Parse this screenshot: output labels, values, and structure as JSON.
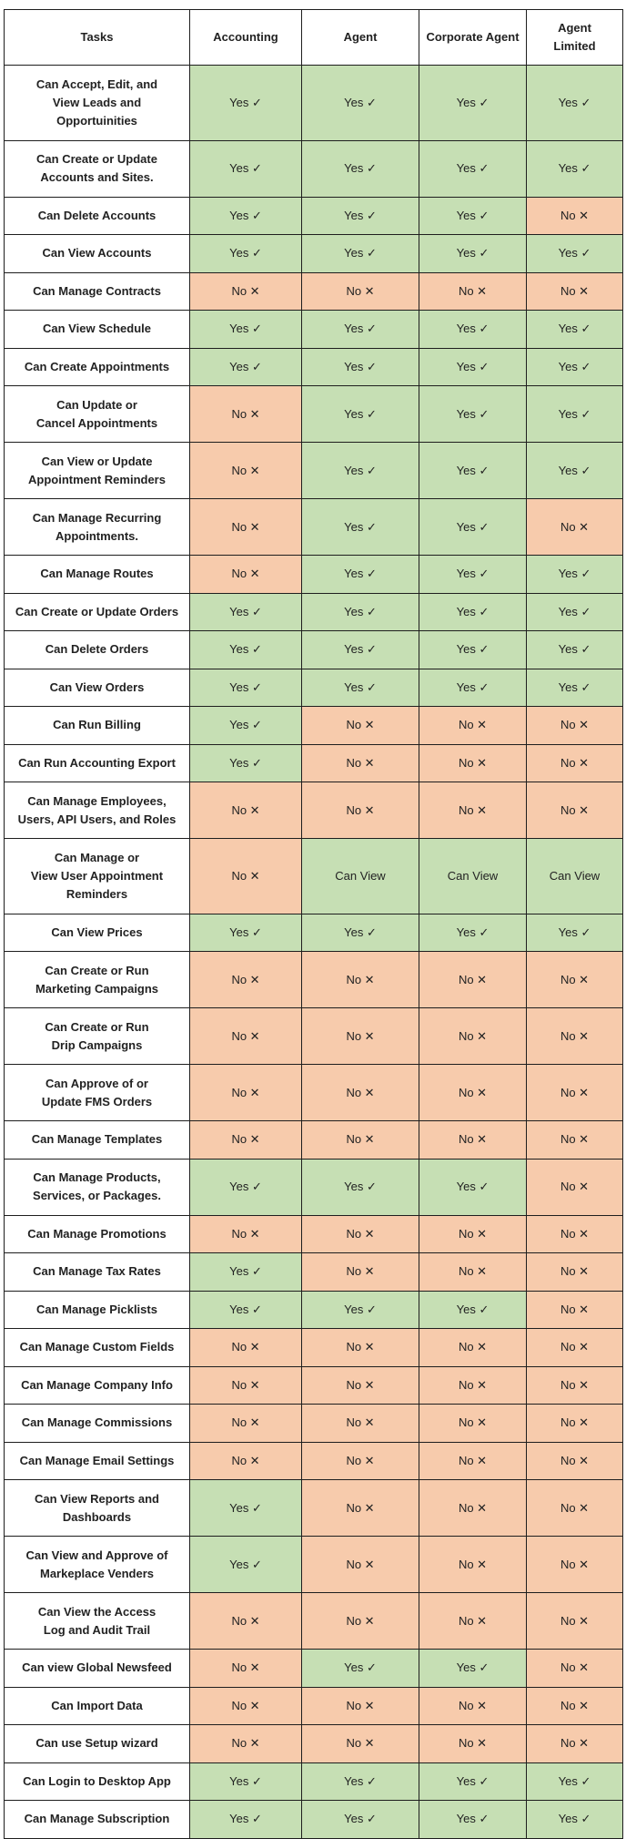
{
  "colors": {
    "yes": "#c6dfb4",
    "no": "#f7cbac"
  },
  "headers": [
    "Tasks",
    "Accounting",
    "Agent",
    "Corporate Agent",
    "Agent\nLimited"
  ],
  "rows": [
    {
      "task": "Can Accept, Edit, and\nView Leads and\nOpportuinities",
      "cells": [
        "Yes ✓",
        "Yes ✓",
        "Yes ✓",
        "Yes ✓"
      ]
    },
    {
      "task": "Can Create or Update\nAccounts and Sites.",
      "cells": [
        "Yes ✓",
        "Yes ✓",
        "Yes ✓",
        "Yes ✓"
      ]
    },
    {
      "task": "Can Delete Accounts",
      "cells": [
        "Yes ✓",
        "Yes ✓",
        "Yes ✓",
        "No ✕"
      ]
    },
    {
      "task": "Can View Accounts",
      "cells": [
        "Yes ✓",
        "Yes ✓",
        "Yes ✓",
        "Yes ✓"
      ]
    },
    {
      "task": "Can Manage Contracts",
      "cells": [
        "No ✕",
        "No ✕",
        "No ✕",
        "No ✕"
      ]
    },
    {
      "task": "Can View Schedule",
      "cells": [
        "Yes ✓",
        "Yes ✓",
        "Yes ✓",
        "Yes ✓"
      ]
    },
    {
      "task": "Can Create Appointments",
      "cells": [
        "Yes ✓",
        "Yes ✓",
        "Yes ✓",
        "Yes ✓"
      ]
    },
    {
      "task": "Can Update or\nCancel Appointments",
      "cells": [
        "No ✕",
        "Yes ✓",
        "Yes ✓",
        "Yes ✓"
      ]
    },
    {
      "task": "Can View or Update\nAppointment Reminders",
      "cells": [
        "No ✕",
        "Yes ✓",
        "Yes ✓",
        "Yes ✓"
      ]
    },
    {
      "task": "Can Manage Recurring\nAppointments.",
      "cells": [
        "No ✕",
        "Yes ✓",
        "Yes ✓",
        "No ✕"
      ]
    },
    {
      "task": "Can Manage Routes",
      "cells": [
        "No ✕",
        "Yes ✓",
        "Yes ✓",
        "Yes ✓"
      ]
    },
    {
      "task": "Can Create or Update Orders",
      "cells": [
        "Yes ✓",
        "Yes ✓",
        "Yes ✓",
        "Yes ✓"
      ]
    },
    {
      "task": "Can Delete Orders",
      "cells": [
        "Yes ✓",
        "Yes ✓",
        "Yes ✓",
        "Yes ✓"
      ]
    },
    {
      "task": "Can View Orders",
      "cells": [
        "Yes ✓",
        "Yes ✓",
        "Yes ✓",
        "Yes ✓"
      ]
    },
    {
      "task": "Can Run Billing",
      "cells": [
        "Yes ✓",
        "No ✕",
        "No ✕",
        "No ✕"
      ]
    },
    {
      "task": "Can Run Accounting Export",
      "cells": [
        "Yes ✓",
        "No ✕",
        "No ✕",
        "No ✕"
      ]
    },
    {
      "task": "Can Manage Employees,\nUsers, API Users, and Roles",
      "cells": [
        "No ✕",
        "No ✕",
        "No ✕",
        "No ✕"
      ]
    },
    {
      "task": "Can Manage or\nView User Appointment\nReminders",
      "cells": [
        "No ✕",
        "Can View",
        "Can View",
        "Can View"
      ]
    },
    {
      "task": "Can View Prices",
      "cells": [
        "Yes ✓",
        "Yes ✓",
        "Yes ✓",
        "Yes ✓"
      ]
    },
    {
      "task": "Can Create or Run\nMarketing Campaigns",
      "cells": [
        "No ✕",
        "No ✕",
        "No ✕",
        "No ✕"
      ]
    },
    {
      "task": "Can Create or Run\nDrip Campaigns",
      "cells": [
        "No ✕",
        "No ✕",
        "No ✕",
        "No ✕"
      ]
    },
    {
      "task": "Can Approve of or\nUpdate FMS Orders",
      "cells": [
        "No ✕",
        "No ✕",
        "No ✕",
        "No ✕"
      ]
    },
    {
      "task": "Can Manage Templates",
      "cells": [
        "No ✕",
        "No ✕",
        "No ✕",
        "No ✕"
      ]
    },
    {
      "task": "Can Manage Products,\nServices, or Packages.",
      "cells": [
        "Yes ✓",
        "Yes ✓",
        "Yes ✓",
        "No ✕"
      ]
    },
    {
      "task": "Can Manage Promotions",
      "cells": [
        "No ✕",
        "No ✕",
        "No ✕",
        "No ✕"
      ]
    },
    {
      "task": "Can Manage Tax Rates",
      "cells": [
        "Yes ✓",
        "No ✕",
        "No ✕",
        "No ✕"
      ]
    },
    {
      "task": "Can Manage Picklists",
      "cells": [
        "Yes ✓",
        "Yes ✓",
        "Yes ✓",
        "No ✕"
      ]
    },
    {
      "task": "Can Manage Custom Fields",
      "cells": [
        "No ✕",
        "No ✕",
        "No ✕",
        "No ✕"
      ]
    },
    {
      "task": "Can Manage Company Info",
      "cells": [
        "No ✕",
        "No ✕",
        "No ✕",
        "No ✕"
      ]
    },
    {
      "task": "Can Manage Commissions",
      "cells": [
        "No ✕",
        "No ✕",
        "No ✕",
        "No ✕"
      ]
    },
    {
      "task": "Can Manage Email Settings",
      "cells": [
        "No ✕",
        "No ✕",
        "No ✕",
        "No ✕"
      ]
    },
    {
      "task": "Can View Reports and\nDashboards",
      "cells": [
        "Yes ✓",
        "No ✕",
        "No ✕",
        "No ✕"
      ]
    },
    {
      "task": "Can View and Approve of\nMarkeplace Venders",
      "cells": [
        "Yes ✓",
        "No ✕",
        "No ✕",
        "No ✕"
      ]
    },
    {
      "task": "Can View the Access\nLog and Audit Trail",
      "cells": [
        "No ✕",
        "No ✕",
        "No ✕",
        "No ✕"
      ]
    },
    {
      "task": "Can view Global Newsfeed",
      "cells": [
        "No ✕",
        "Yes ✓",
        "Yes ✓",
        "No ✕"
      ]
    },
    {
      "task": "Can Import Data",
      "cells": [
        "No ✕",
        "No ✕",
        "No ✕",
        "No ✕"
      ]
    },
    {
      "task": "Can use Setup wizard",
      "cells": [
        "No ✕",
        "No ✕",
        "No ✕",
        "No ✕"
      ]
    },
    {
      "task": "Can Login to Desktop App",
      "cells": [
        "Yes ✓",
        "Yes ✓",
        "Yes ✓",
        "Yes ✓"
      ]
    },
    {
      "task": "Can Manage Subscription",
      "cells": [
        "Yes ✓",
        "Yes ✓",
        "Yes ✓",
        "Yes ✓"
      ]
    }
  ]
}
